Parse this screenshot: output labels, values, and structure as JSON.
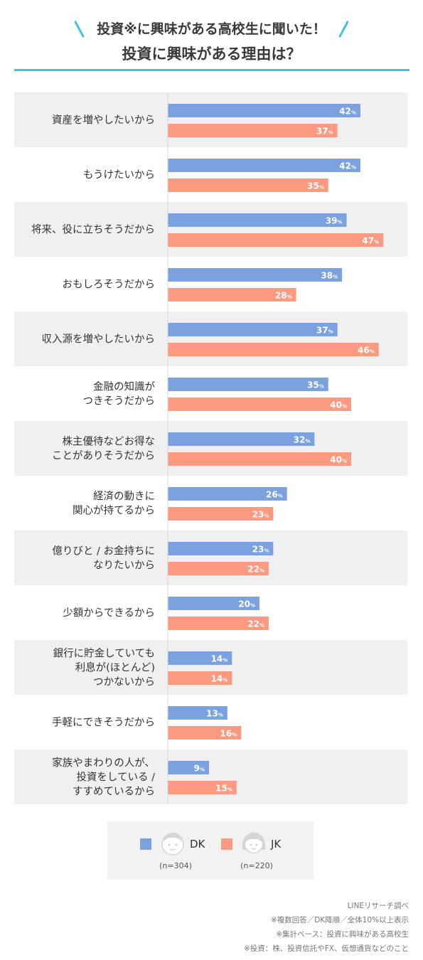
{
  "title": {
    "line1": "投資※に興味がある高校生に聞いた！",
    "line2": "投資に興味がある理由は？"
  },
  "colors": {
    "dk": "#7ba2de",
    "jk": "#fb9a80",
    "accent": "#3fc3e3",
    "row_shade": "#f0f0f0"
  },
  "chart_data": {
    "type": "bar",
    "orientation": "horizontal",
    "unit": "%",
    "categories": [
      [
        "資産を増やしたいから"
      ],
      [
        "もうけたいから"
      ],
      [
        "将来、役に立ちそうだから"
      ],
      [
        "おもしろそうだから"
      ],
      [
        "収入源を増やしたいから"
      ],
      [
        "金融の知識が",
        "つきそうだから"
      ],
      [
        "株主優待などお得な",
        "ことがありそうだから"
      ],
      [
        "経済の動きに",
        "関心が持てるから"
      ],
      [
        "億りびと / お金持ちに",
        "なりたいから"
      ],
      [
        "少額からできるから"
      ],
      [
        "銀行に貯金していても",
        "利息が(ほとんど)",
        "つかないから"
      ],
      [
        "手軽にできそうだから"
      ],
      [
        "家族やまわりの人が、",
        "投資をしている /",
        "すすめているから"
      ]
    ],
    "series": [
      {
        "name": "DK",
        "values": [
          42,
          42,
          39,
          38,
          37,
          35,
          32,
          26,
          23,
          20,
          14,
          13,
          9
        ]
      },
      {
        "name": "JK",
        "values": [
          37,
          35,
          47,
          28,
          46,
          40,
          40,
          23,
          22,
          22,
          14,
          16,
          15
        ]
      }
    ],
    "xlim": [
      0,
      50
    ],
    "legend": "bottom"
  },
  "legend": {
    "dk_label": "DK",
    "jk_label": "JK",
    "dk_n": "(n=304)",
    "jk_n": "(n=220)",
    "dk_icon": "boy-face-icon",
    "jk_icon": "girl-face-icon"
  },
  "notes": [
    "LINEリサーチ調べ",
    "※複数回答／DK降順／全体10%以上表示",
    "※集計ベース：投資に興味がある高校生",
    "※投資：株、投資信託やFX、仮想通貨などのこと"
  ]
}
